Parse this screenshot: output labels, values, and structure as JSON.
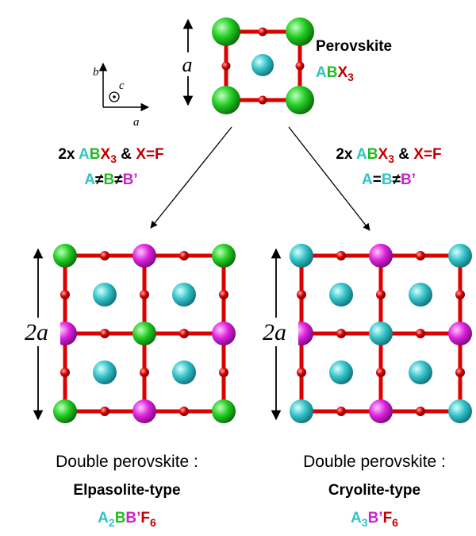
{
  "unit_cell": {
    "lattice_label": "a",
    "axis_b": "b",
    "axis_c": "c",
    "axis_a": "a",
    "name": "Perovskite",
    "formula": [
      "A",
      "B",
      "X",
      "3"
    ]
  },
  "left_route": {
    "line1": [
      "2x ",
      "A",
      "B",
      "X",
      "3",
      " & ",
      "X=F"
    ],
    "line2": [
      "A",
      "≠",
      "B",
      "≠",
      "B’"
    ]
  },
  "right_route": {
    "line1": [
      "2x ",
      "A",
      "B",
      "X",
      "3",
      " & ",
      "X=F"
    ],
    "line2": [
      "A",
      "=",
      "B",
      "≠",
      "B’"
    ]
  },
  "left_structure": {
    "lattice_label": "2a",
    "kind": "Double perovskite :",
    "name": "Elpasolite-type",
    "formula": [
      "A",
      "2",
      "B",
      "B’",
      "F",
      "6"
    ]
  },
  "right_structure": {
    "lattice_label": "2a",
    "kind": "Double perovskite :",
    "name": "Cryolite-type",
    "formula": [
      "A",
      "3",
      "B’",
      "F",
      "6"
    ]
  }
}
